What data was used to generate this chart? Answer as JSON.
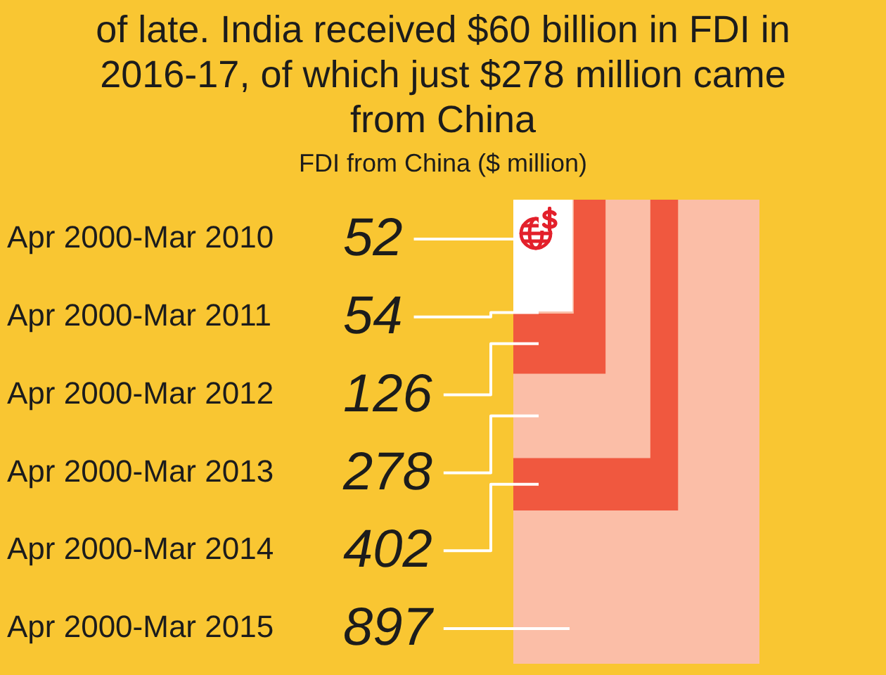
{
  "chart_data": {
    "type": "other",
    "title": "of late. India received $60 billion in FDI in 2016-17, of which just $278 million came from China",
    "subtitle": "FDI from China ($ million)",
    "categories": [
      "Apr 2000-Mar 2010",
      "Apr 2000-Mar 2011",
      "Apr 2000-Mar 2012",
      "Apr 2000-Mar 2013",
      "Apr 2000-Mar 2014",
      "Apr 2000-Mar 2015"
    ],
    "values": [
      52,
      54,
      126,
      278,
      402,
      897
    ],
    "colors": [
      "#ffffff",
      "#fbbea7",
      "#f0583f",
      "#fbbea7",
      "#f0583f",
      "#fbbea7"
    ],
    "data_labels": true
  }
}
